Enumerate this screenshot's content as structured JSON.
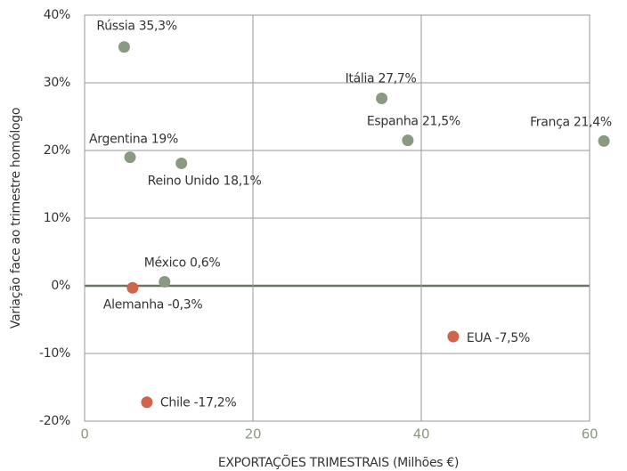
{
  "chart_data": {
    "type": "scatter",
    "xlabel": "EXPORTAÇÕES TRIMESTRAIS (Milhões €)",
    "ylabel": "Variação face ao trimestre homólogo",
    "x": [
      4.7,
      5.4,
      11.5,
      9.5,
      5.7,
      7.4,
      35.3,
      38.4,
      61.7,
      43.8
    ],
    "values": [
      35.3,
      19,
      18.1,
      0.6,
      -0.3,
      -17.2,
      27.7,
      21.5,
      21.4,
      -7.5
    ],
    "value_labels": [
      "Rússia 35,3%",
      "Argentina 19%",
      "Reino Unido 18,1%",
      "México 0,6%",
      "Alemanha -0,3%",
      "Chile -17,2%",
      "Itália 27,7%",
      "Espanha 21,5%",
      "França 21,4%",
      "EUA -7,5%"
    ],
    "colors": [
      "#8a9a82",
      "#8a9a82",
      "#8a9a82",
      "#8a9a82",
      "#d0644c",
      "#d0644c",
      "#8a9a82",
      "#8a9a82",
      "#8a9a82",
      "#d0644c"
    ],
    "xlim": [
      0,
      60
    ],
    "xticks": [
      0,
      20,
      40,
      60
    ],
    "ylim": [
      -20,
      40
    ],
    "yticks": [
      {
        "value": -20,
        "label": "-20%"
      },
      {
        "value": -10,
        "label": "-10%"
      },
      {
        "value": 0,
        "label": "0%"
      },
      {
        "value": 10,
        "label": "10%"
      },
      {
        "value": 20,
        "label": "20%"
      },
      {
        "value": 30,
        "label": "30%"
      },
      {
        "value": 40,
        "label": "40%"
      }
    ],
    "grid": true
  }
}
